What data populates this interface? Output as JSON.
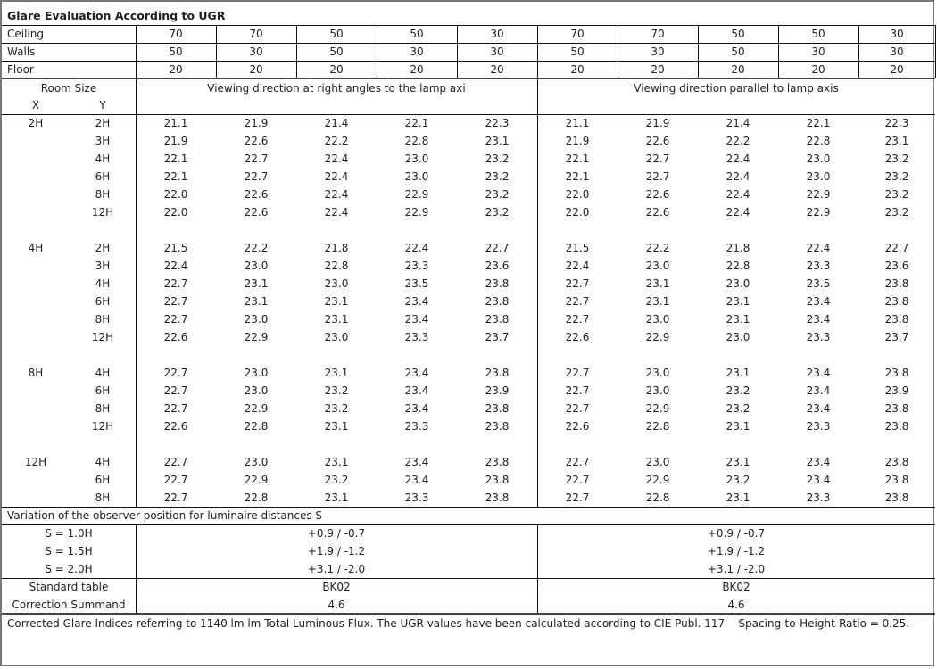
{
  "title": "Glare Evaluation According to UGR",
  "reflectances": {
    "ceiling": {
      "label": "Ceiling",
      "values": [
        "70",
        "70",
        "50",
        "50",
        "30",
        "70",
        "70",
        "50",
        "50",
        "30"
      ]
    },
    "walls": {
      "label": "Walls",
      "values": [
        "50",
        "30",
        "50",
        "30",
        "30",
        "50",
        "30",
        "50",
        "30",
        "30"
      ]
    },
    "floor": {
      "label": "Floor",
      "values": [
        "20",
        "20",
        "20",
        "20",
        "20",
        "20",
        "20",
        "20",
        "20",
        "20"
      ]
    }
  },
  "header": {
    "room_size": "Room Size",
    "x": "X",
    "y": "Y",
    "direction_right_angles": "Viewing direction at right angles to the lamp axi",
    "direction_parallel": "Viewing direction parallel to lamp axis"
  },
  "groups": [
    {
      "x": "2H",
      "rows": [
        {
          "y": "2H",
          "values": [
            "21.1",
            "21.9",
            "21.4",
            "22.1",
            "22.3",
            "21.1",
            "21.9",
            "21.4",
            "22.1",
            "22.3"
          ]
        },
        {
          "y": "3H",
          "values": [
            "21.9",
            "22.6",
            "22.2",
            "22.8",
            "23.1",
            "21.9",
            "22.6",
            "22.2",
            "22.8",
            "23.1"
          ]
        },
        {
          "y": "4H",
          "values": [
            "22.1",
            "22.7",
            "22.4",
            "23.0",
            "23.2",
            "22.1",
            "22.7",
            "22.4",
            "23.0",
            "23.2"
          ]
        },
        {
          "y": "6H",
          "values": [
            "22.1",
            "22.7",
            "22.4",
            "23.0",
            "23.2",
            "22.1",
            "22.7",
            "22.4",
            "23.0",
            "23.2"
          ]
        },
        {
          "y": "8H",
          "values": [
            "22.0",
            "22.6",
            "22.4",
            "22.9",
            "23.2",
            "22.0",
            "22.6",
            "22.4",
            "22.9",
            "23.2"
          ]
        },
        {
          "y": "12H",
          "values": [
            "22.0",
            "22.6",
            "22.4",
            "22.9",
            "23.2",
            "22.0",
            "22.6",
            "22.4",
            "22.9",
            "23.2"
          ]
        }
      ]
    },
    {
      "x": "4H",
      "rows": [
        {
          "y": "2H",
          "values": [
            "21.5",
            "22.2",
            "21.8",
            "22.4",
            "22.7",
            "21.5",
            "22.2",
            "21.8",
            "22.4",
            "22.7"
          ]
        },
        {
          "y": "3H",
          "values": [
            "22.4",
            "23.0",
            "22.8",
            "23.3",
            "23.6",
            "22.4",
            "23.0",
            "22.8",
            "23.3",
            "23.6"
          ]
        },
        {
          "y": "4H",
          "values": [
            "22.7",
            "23.1",
            "23.0",
            "23.5",
            "23.8",
            "22.7",
            "23.1",
            "23.0",
            "23.5",
            "23.8"
          ]
        },
        {
          "y": "6H",
          "values": [
            "22.7",
            "23.1",
            "23.1",
            "23.4",
            "23.8",
            "22.7",
            "23.1",
            "23.1",
            "23.4",
            "23.8"
          ]
        },
        {
          "y": "8H",
          "values": [
            "22.7",
            "23.0",
            "23.1",
            "23.4",
            "23.8",
            "22.7",
            "23.0",
            "23.1",
            "23.4",
            "23.8"
          ]
        },
        {
          "y": "12H",
          "values": [
            "22.6",
            "22.9",
            "23.0",
            "23.3",
            "23.7",
            "22.6",
            "22.9",
            "23.0",
            "23.3",
            "23.7"
          ]
        }
      ]
    },
    {
      "x": "8H",
      "rows": [
        {
          "y": "4H",
          "values": [
            "22.7",
            "23.0",
            "23.1",
            "23.4",
            "23.8",
            "22.7",
            "23.0",
            "23.1",
            "23.4",
            "23.8"
          ]
        },
        {
          "y": "6H",
          "values": [
            "22.7",
            "23.0",
            "23.2",
            "23.4",
            "23.9",
            "22.7",
            "23.0",
            "23.2",
            "23.4",
            "23.9"
          ]
        },
        {
          "y": "8H",
          "values": [
            "22.7",
            "22.9",
            "23.2",
            "23.4",
            "23.8",
            "22.7",
            "22.9",
            "23.2",
            "23.4",
            "23.8"
          ]
        },
        {
          "y": "12H",
          "values": [
            "22.6",
            "22.8",
            "23.1",
            "23.3",
            "23.8",
            "22.6",
            "22.8",
            "23.1",
            "23.3",
            "23.8"
          ]
        }
      ]
    },
    {
      "x": "12H",
      "rows": [
        {
          "y": "4H",
          "values": [
            "22.7",
            "23.0",
            "23.1",
            "23.4",
            "23.8",
            "22.7",
            "23.0",
            "23.1",
            "23.4",
            "23.8"
          ]
        },
        {
          "y": "6H",
          "values": [
            "22.7",
            "22.9",
            "23.2",
            "23.4",
            "23.8",
            "22.7",
            "22.9",
            "23.2",
            "23.4",
            "23.8"
          ]
        },
        {
          "y": "8H",
          "values": [
            "22.7",
            "22.8",
            "23.1",
            "23.3",
            "23.8",
            "22.7",
            "22.8",
            "23.1",
            "23.3",
            "23.8"
          ]
        }
      ]
    }
  ],
  "variation": {
    "label": "Variation of the observer position for luminaire distances S",
    "rows": [
      {
        "s": "S = 1.0H",
        "right_angles": "+0.9 / -0.7",
        "parallel": "+0.9 / -0.7"
      },
      {
        "s": "S = 1.5H",
        "right_angles": "+1.9 / -1.2",
        "parallel": "+1.9 / -1.2"
      },
      {
        "s": "S = 2.0H",
        "right_angles": "+3.1 / -2.0",
        "parallel": "+3.1 / -2.0"
      }
    ]
  },
  "standard_table": {
    "label": "Standard table",
    "right_angles": "BK02",
    "parallel": "BK02"
  },
  "correction_summand": {
    "label": "Correction Summand",
    "right_angles": "4.6",
    "parallel": "4.6"
  },
  "footnote": "Corrected Glare Indices referring to 1140 lm lm Total Luminous Flux. The UGR values have been calculated according to CIE Publ. 117    Spacing-to-Height-Ratio = 0.25."
}
